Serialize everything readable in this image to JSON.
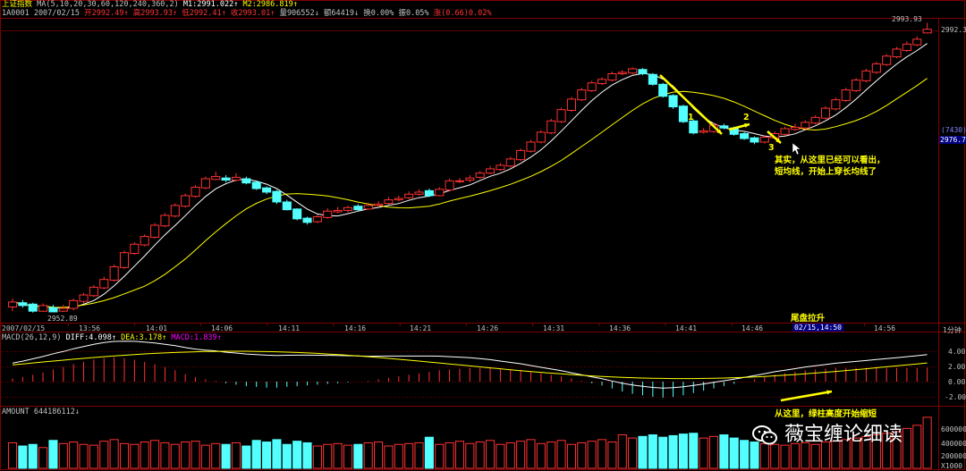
{
  "header": {
    "index_name": "上证指数",
    "ma_params": "MA(5,10,20,30,60,120,240,360,2)",
    "m1": "M1:2991.022↑",
    "m2": "M2:2986.819↑",
    "code_date": "1A0001 2007/02/15",
    "open": "开2992.49↑",
    "high": "高2993.93↑",
    "low": "低2992.41↑",
    "close": "收2993.01↑",
    "volume": "量906552↓",
    "amount": "额64419↓",
    "turnover": "换0.00%",
    "amplitude": "振0.05%",
    "change": "涨(0.66)0.02%"
  },
  "price_axis": {
    "top_label": "2992.3",
    "mid_label": "(7430)",
    "cur_label": "2976.70",
    "high_mark": "2993.93",
    "low_mark": "2952.89"
  },
  "time_axis": [
    "2007/02/15",
    "13:56",
    "14:01",
    "14:06",
    "14:11",
    "14:16",
    "14:21",
    "14:26",
    "14:31",
    "14:36",
    "14:41",
    "14:46",
    "02/15,14:50",
    "14:56"
  ],
  "period": "1分钟",
  "macd": {
    "label": "MACD(26,12,9)",
    "diff": "DIFF:4.098↑",
    "dea": "DEA:3.178↑",
    "macd": "MACD:1.839↑",
    "ticks": [
      "4.00",
      "2.00",
      "0.00",
      "-2.00"
    ]
  },
  "amount_panel": {
    "label": "AMOUNT 644186112↓",
    "ticks": [
      "600000",
      "400000",
      "200000",
      "X1000"
    ]
  },
  "annotations": {
    "n1": "1",
    "n2": "2",
    "n3": "3",
    "note_line1": "其实，从这里已经可以看出，",
    "note_line2": "短均线，开始上穿长均线了",
    "tail": "尾盘拉升",
    "macd_note": "从这里，绿柱高度开始缩短"
  },
  "watermark": "薇宝缠论细读",
  "colors": {
    "up": "#ff3232",
    "down": "#54ffff",
    "ma_short": "#ffffff",
    "ma_long": "#ffff00",
    "grid": "#800000",
    "label": "#c0c0c0"
  },
  "chart_data": {
    "type": "candlestick",
    "candles": [
      [
        2953.6,
        2954.3,
        2953.0,
        2954.8
      ],
      [
        2954.2,
        2953.8,
        2953.5,
        2954.6
      ],
      [
        2954.0,
        2953.0,
        2952.8,
        2954.2
      ],
      [
        2953.0,
        2953.8,
        2952.9,
        2954.1
      ],
      [
        2953.5,
        2952.9,
        2952.9,
        2953.9
      ],
      [
        2953.0,
        2953.4,
        2952.89,
        2953.9
      ],
      [
        2953.4,
        2954.5,
        2953.1,
        2954.8
      ],
      [
        2954.4,
        2955.3,
        2954.1,
        2955.6
      ],
      [
        2955.2,
        2956.4,
        2955.0,
        2956.7
      ],
      [
        2956.3,
        2957.5,
        2956.1,
        2957.9
      ],
      [
        2957.4,
        2959.3,
        2957.2,
        2959.6
      ],
      [
        2959.2,
        2961.3,
        2959.0,
        2961.6
      ],
      [
        2961.2,
        2962.5,
        2961.0,
        2962.8
      ],
      [
        2962.4,
        2963.6,
        2962.2,
        2963.9
      ],
      [
        2963.5,
        2965.2,
        2963.3,
        2965.5
      ],
      [
        2965.1,
        2966.6,
        2964.9,
        2966.9
      ],
      [
        2966.5,
        2968.0,
        2966.3,
        2968.3
      ],
      [
        2967.9,
        2969.4,
        2967.7,
        2969.7
      ],
      [
        2969.3,
        2970.6,
        2969.1,
        2970.9
      ],
      [
        2970.5,
        2971.8,
        2970.3,
        2972.1
      ],
      [
        2971.7,
        2972.1,
        2971.6,
        2972.8
      ],
      [
        2971.9,
        2971.6,
        2971.3,
        2972.3
      ],
      [
        2971.6,
        2972.0,
        2971.4,
        2972.6
      ],
      [
        2971.8,
        2971.2,
        2971.0,
        2972.1
      ],
      [
        2971.3,
        2970.4,
        2970.2,
        2971.5
      ],
      [
        2970.5,
        2969.9,
        2969.6,
        2970.7
      ],
      [
        2970.0,
        2968.5,
        2968.2,
        2970.2
      ],
      [
        2968.5,
        2967.4,
        2967.3,
        2968.8
      ],
      [
        2967.5,
        2966.1,
        2965.9,
        2967.6
      ],
      [
        2966.2,
        2965.6,
        2965.3,
        2966.4
      ],
      [
        2965.7,
        2966.4,
        2965.5,
        2966.7
      ],
      [
        2966.3,
        2967.2,
        2966.1,
        2967.6
      ],
      [
        2967.1,
        2967.3,
        2966.9,
        2967.8
      ],
      [
        2967.3,
        2967.7,
        2967.0,
        2968.0
      ],
      [
        2967.9,
        2967.4,
        2967.2,
        2968.2
      ],
      [
        2967.5,
        2968.0,
        2967.4,
        2968.4
      ],
      [
        2968.0,
        2968.2,
        2967.9,
        2968.6
      ],
      [
        2968.3,
        2968.8,
        2968.1,
        2969.2
      ],
      [
        2968.8,
        2969.0,
        2968.6,
        2969.4
      ],
      [
        2969.1,
        2969.6,
        2968.9,
        2970.0
      ],
      [
        2969.6,
        2969.9,
        2969.4,
        2970.3
      ],
      [
        2970.1,
        2969.4,
        2969.2,
        2970.4
      ],
      [
        2969.4,
        2970.3,
        2969.3,
        2970.6
      ],
      [
        2970.2,
        2971.5,
        2970.0,
        2971.8
      ],
      [
        2971.4,
        2971.5,
        2971.2,
        2971.9
      ],
      [
        2971.6,
        2971.9,
        2971.3,
        2972.3
      ],
      [
        2972.0,
        2972.6,
        2971.8,
        2972.9
      ],
      [
        2972.6,
        2973.2,
        2972.4,
        2973.6
      ],
      [
        2973.1,
        2973.7,
        2972.9,
        2974.0
      ],
      [
        2973.6,
        2974.6,
        2973.4,
        2974.9
      ],
      [
        2974.5,
        2975.8,
        2974.3,
        2976.1
      ],
      [
        2975.7,
        2977.0,
        2975.5,
        2977.3
      ],
      [
        2977.0,
        2978.4,
        2976.8,
        2978.7
      ],
      [
        2978.3,
        2980.0,
        2978.1,
        2980.3
      ],
      [
        2979.9,
        2981.6,
        2979.7,
        2981.9
      ],
      [
        2981.5,
        2983.1,
        2981.3,
        2983.4
      ],
      [
        2983.0,
        2984.4,
        2982.8,
        2984.7
      ],
      [
        2984.3,
        2985.4,
        2984.1,
        2985.7
      ],
      [
        2985.3,
        2985.9,
        2985.1,
        2986.2
      ],
      [
        2985.8,
        2986.7,
        2985.6,
        2987.0
      ],
      [
        2986.7,
        2986.9,
        2986.5,
        2987.2
      ],
      [
        2986.8,
        2987.4,
        2986.6,
        2987.6
      ],
      [
        2987.3,
        2986.7,
        2986.5,
        2987.5
      ],
      [
        2986.6,
        2985.2,
        2985.0,
        2986.8
      ],
      [
        2985.2,
        2983.5,
        2983.3,
        2985.4
      ],
      [
        2983.6,
        2982.0,
        2981.7,
        2983.8
      ],
      [
        2982.1,
        2979.9,
        2979.7,
        2982.3
      ],
      [
        2980.0,
        2978.3,
        2978.1,
        2980.2
      ],
      [
        2978.4,
        2978.6,
        2978.2,
        2979.0
      ],
      [
        2978.5,
        2979.4,
        2978.3,
        2979.7
      ],
      [
        2979.3,
        2979.0,
        2978.8,
        2979.6
      ],
      [
        2979.0,
        2978.1,
        2977.9,
        2979.2
      ],
      [
        2978.2,
        2977.5,
        2977.3,
        2978.4
      ],
      [
        2977.6,
        2977.0,
        2976.7,
        2977.8
      ],
      [
        2977.0,
        2977.7,
        2976.8,
        2978.0
      ],
      [
        2977.6,
        2978.2,
        2977.4,
        2978.5
      ],
      [
        2978.1,
        2978.9,
        2977.9,
        2979.2
      ],
      [
        2978.8,
        2979.1,
        2978.6,
        2979.6
      ],
      [
        2979.0,
        2979.8,
        2978.8,
        2980.1
      ],
      [
        2979.7,
        2980.5,
        2979.5,
        2980.8
      ],
      [
        2980.4,
        2981.8,
        2980.2,
        2982.1
      ],
      [
        2981.7,
        2983.0,
        2981.5,
        2983.3
      ],
      [
        2982.9,
        2984.4,
        2982.7,
        2984.7
      ],
      [
        2984.3,
        2985.8,
        2984.1,
        2986.1
      ],
      [
        2985.7,
        2987.1,
        2985.5,
        2987.4
      ],
      [
        2986.9,
        2988.1,
        2986.7,
        2988.4
      ],
      [
        2988.0,
        2989.2,
        2987.8,
        2989.5
      ],
      [
        2989.1,
        2990.2,
        2988.9,
        2990.5
      ],
      [
        2990.0,
        2990.9,
        2989.8,
        2991.3
      ],
      [
        2990.8,
        2991.6,
        2990.6,
        2992.0
      ],
      [
        2992.49,
        2993.01,
        2992.41,
        2993.93
      ]
    ],
    "macd_hist": [
      0.4,
      0.6,
      0.9,
      1.2,
      1.6,
      1.9,
      2.3,
      2.6,
      2.9,
      3.1,
      3.2,
      3.1,
      2.9,
      2.6,
      2.3,
      1.9,
      1.5,
      1.0,
      0.6,
      0.3,
      0.1,
      -0.2,
      -0.4,
      -0.6,
      -0.7,
      -0.8,
      -0.8,
      -0.7,
      -0.6,
      -0.5,
      -0.4,
      -0.3,
      -0.2,
      -0.1,
      0.0,
      0.1,
      0.3,
      0.5,
      0.7,
      0.9,
      1.1,
      1.3,
      1.5,
      1.6,
      1.7,
      1.8,
      1.8,
      1.8,
      1.7,
      1.6,
      1.5,
      1.3,
      1.1,
      0.9,
      0.7,
      0.4,
      0.1,
      -0.2,
      -0.5,
      -0.9,
      -1.3,
      -1.6,
      -1.8,
      -2.0,
      -2.1,
      -2.0,
      -1.8,
      -1.5,
      -1.2,
      -0.9,
      -0.6,
      -0.3,
      0.0,
      0.3,
      0.6,
      0.9,
      1.1,
      1.3,
      1.5,
      1.6,
      1.7,
      1.8,
      1.8,
      1.8,
      1.8,
      1.8,
      1.8,
      1.8,
      1.8,
      1.8,
      1.84
    ],
    "amount": [
      320,
      280,
      300,
      260,
      350,
      310,
      330,
      300,
      290,
      340,
      360,
      310,
      300,
      330,
      350,
      320,
      300,
      330,
      340,
      290,
      310,
      300,
      320,
      280,
      350,
      330,
      360,
      300,
      340,
      320,
      280,
      300,
      310,
      290,
      300,
      320,
      330,
      280,
      300,
      310,
      320,
      390,
      300,
      320,
      340,
      310,
      330,
      350,
      300,
      320,
      340,
      360,
      310,
      330,
      350,
      300,
      320,
      340,
      360,
      330,
      420,
      380,
      400,
      420,
      390,
      410,
      430,
      440,
      380,
      400,
      420,
      380,
      350,
      330,
      310,
      300,
      290,
      310,
      320,
      300,
      330,
      340,
      360,
      380,
      400,
      420,
      440,
      460,
      500,
      540,
      640
    ]
  }
}
